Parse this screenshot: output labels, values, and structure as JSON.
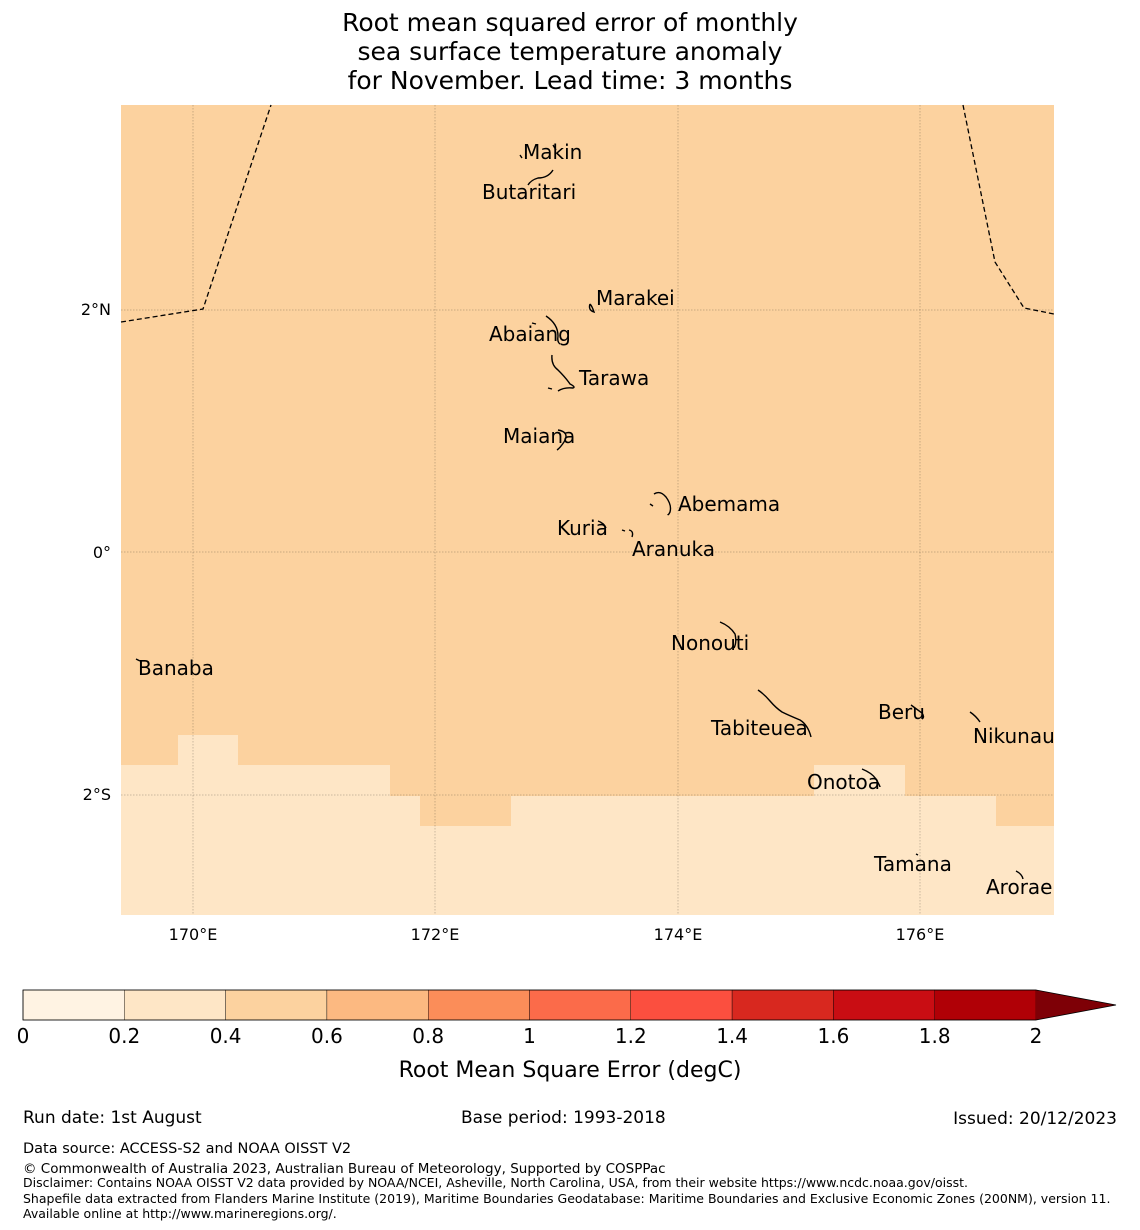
{
  "title": {
    "line1": "Root mean squared error of monthly",
    "line2": "sea surface temperature anomaly",
    "line3": "for November. Lead time: 3 months"
  },
  "map": {
    "lat_ticks": [
      "2°N",
      "0°",
      "2°S"
    ],
    "lon_ticks": [
      "170°E",
      "172°E",
      "174°E",
      "176°E"
    ],
    "islands": [
      "Makin",
      "Butaritari",
      "Marakei",
      "Abaiang",
      "Tarawa",
      "Maiana",
      "Abemama",
      "Kuria",
      "Aranuka",
      "Nonouti",
      "Banaba",
      "Tabiteuea",
      "Beru",
      "Nikunau",
      "Onotoa",
      "Tamana",
      "Arorae"
    ],
    "colors": {
      "rmse_0_2": "#fee6c6",
      "rmse_4_6": "#fcd29f"
    }
  },
  "colorbar": {
    "label": "Root Mean Square Error (degC)",
    "ticks": [
      "0",
      "0.2",
      "0.4",
      "0.6",
      "0.8",
      "1",
      "1.2",
      "1.4",
      "1.6",
      "1.8",
      "2"
    ],
    "colors": [
      "#fff3e3",
      "#fee6c6",
      "#fcd29f",
      "#fcb981",
      "#fb8d59",
      "#fb6b4a",
      "#fb4f3f",
      "#d8281f",
      "#c90d13",
      "#b00006"
    ],
    "extend_color": "#7e0006"
  },
  "footer": {
    "run_date": "Run date: 1st August",
    "base_period": "Base period: 1993-2018",
    "issued": "Issued: 20/12/2023",
    "data_source": "Data source: ACCESS-S2 and NOAA OISST V2",
    "copyright": "© Commonwealth of Australia 2023, Australian Bureau of Meteorology, Supported by COSPPac",
    "disclaimer": "Disclaimer: Contains NOAA OISST V2 data provided by NOAA/NCEI, Asheville, North Carolina, USA, from their website https://www.ncdc.noaa.gov/oisst.",
    "shapefile": "Shapefile data extracted from Flanders Marine Institute (2019), Maritime Boundaries Geodatabase: Maritime Boundaries and Exclusive Economic Zones (200NM), version 11. Available online at http://www.marineregions.org/."
  }
}
